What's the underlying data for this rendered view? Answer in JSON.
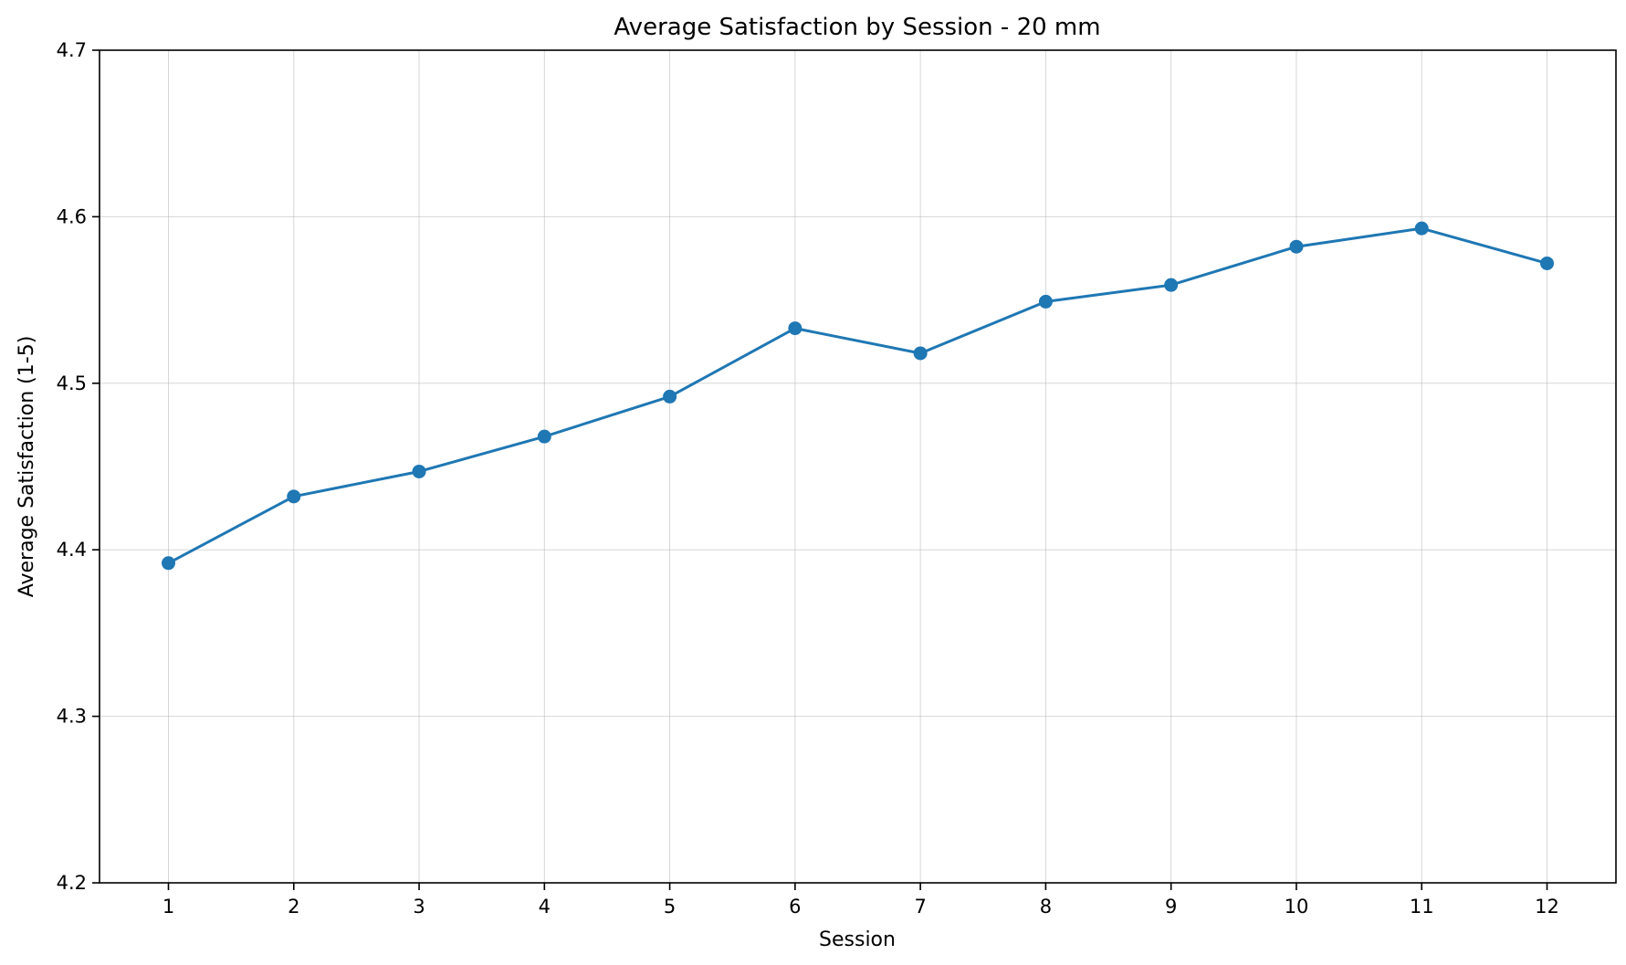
{
  "chart_data": {
    "type": "line",
    "title": "Average Satisfaction by Session - 20 mm",
    "xlabel": "Session",
    "ylabel": "Average Satisfaction (1-5)",
    "x": [
      1,
      2,
      3,
      4,
      5,
      6,
      7,
      8,
      9,
      10,
      11,
      12
    ],
    "xtick_labels": [
      "1",
      "2",
      "3",
      "4",
      "5",
      "6",
      "7",
      "8",
      "9",
      "10",
      "11",
      "12"
    ],
    "series": [
      {
        "values": [
          4.392,
          4.432,
          4.447,
          4.468,
          4.492,
          4.533,
          4.518,
          4.549,
          4.559,
          4.582,
          4.593,
          4.572
        ],
        "color": "#1f77b4",
        "marker": "circle"
      }
    ],
    "xlim": [
      0.45,
      12.55
    ],
    "ylim": [
      4.2,
      4.7
    ],
    "yticks": [
      4.2,
      4.3,
      4.4,
      4.5,
      4.6,
      4.7
    ],
    "ytick_labels": [
      "4.2",
      "4.3",
      "4.4",
      "4.5",
      "4.6",
      "4.7"
    ],
    "grid": true,
    "legend": "none"
  }
}
